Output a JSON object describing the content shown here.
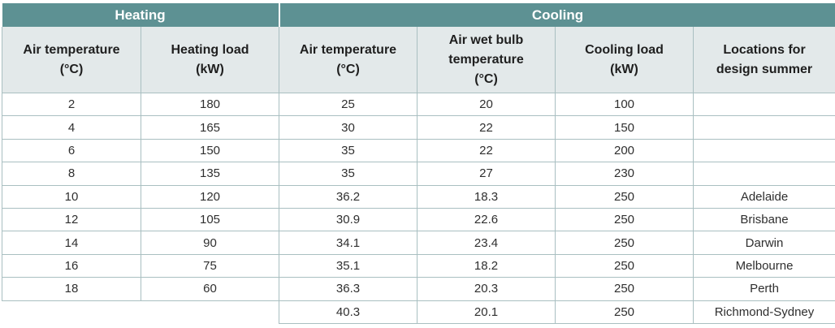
{
  "groups": {
    "heating": "Heating",
    "cooling": "Cooling"
  },
  "headers": {
    "h_air_temp": [
      "Air temperature",
      "(°C)"
    ],
    "h_load": [
      "Heating load",
      "(kW)"
    ],
    "c_air_temp": [
      "Air temperature",
      "(°C)"
    ],
    "c_wet_bulb": [
      "Air wet bulb",
      "temperature",
      "(°C)"
    ],
    "c_load": [
      "Cooling load",
      "(kW)"
    ],
    "c_locations": [
      "Locations for",
      "design summer"
    ]
  },
  "rows": [
    {
      "h_air_temp": "2",
      "h_load": "180",
      "c_air_temp": "25",
      "c_wet_bulb": "20",
      "c_load": "100",
      "c_location": ""
    },
    {
      "h_air_temp": "4",
      "h_load": "165",
      "c_air_temp": "30",
      "c_wet_bulb": "22",
      "c_load": "150",
      "c_location": ""
    },
    {
      "h_air_temp": "6",
      "h_load": "150",
      "c_air_temp": "35",
      "c_wet_bulb": "22",
      "c_load": "200",
      "c_location": ""
    },
    {
      "h_air_temp": "8",
      "h_load": "135",
      "c_air_temp": "35",
      "c_wet_bulb": "27",
      "c_load": "230",
      "c_location": ""
    },
    {
      "h_air_temp": "10",
      "h_load": "120",
      "c_air_temp": "36.2",
      "c_wet_bulb": "18.3",
      "c_load": "250",
      "c_location": "Adelaide"
    },
    {
      "h_air_temp": "12",
      "h_load": "105",
      "c_air_temp": "30.9",
      "c_wet_bulb": "22.6",
      "c_load": "250",
      "c_location": "Brisbane"
    },
    {
      "h_air_temp": "14",
      "h_load": "90",
      "c_air_temp": "34.1",
      "c_wet_bulb": "23.4",
      "c_load": "250",
      "c_location": "Darwin"
    },
    {
      "h_air_temp": "16",
      "h_load": "75",
      "c_air_temp": "35.1",
      "c_wet_bulb": "18.2",
      "c_load": "250",
      "c_location": "Melbourne"
    },
    {
      "h_air_temp": "18",
      "h_load": "60",
      "c_air_temp": "36.3",
      "c_wet_bulb": "20.3",
      "c_load": "250",
      "c_location": "Perth"
    },
    {
      "h_air_temp": "",
      "h_load": "",
      "c_air_temp": "40.3",
      "c_wet_bulb": "20.1",
      "c_load": "250",
      "c_location": "Richmond-Sydney"
    }
  ]
}
